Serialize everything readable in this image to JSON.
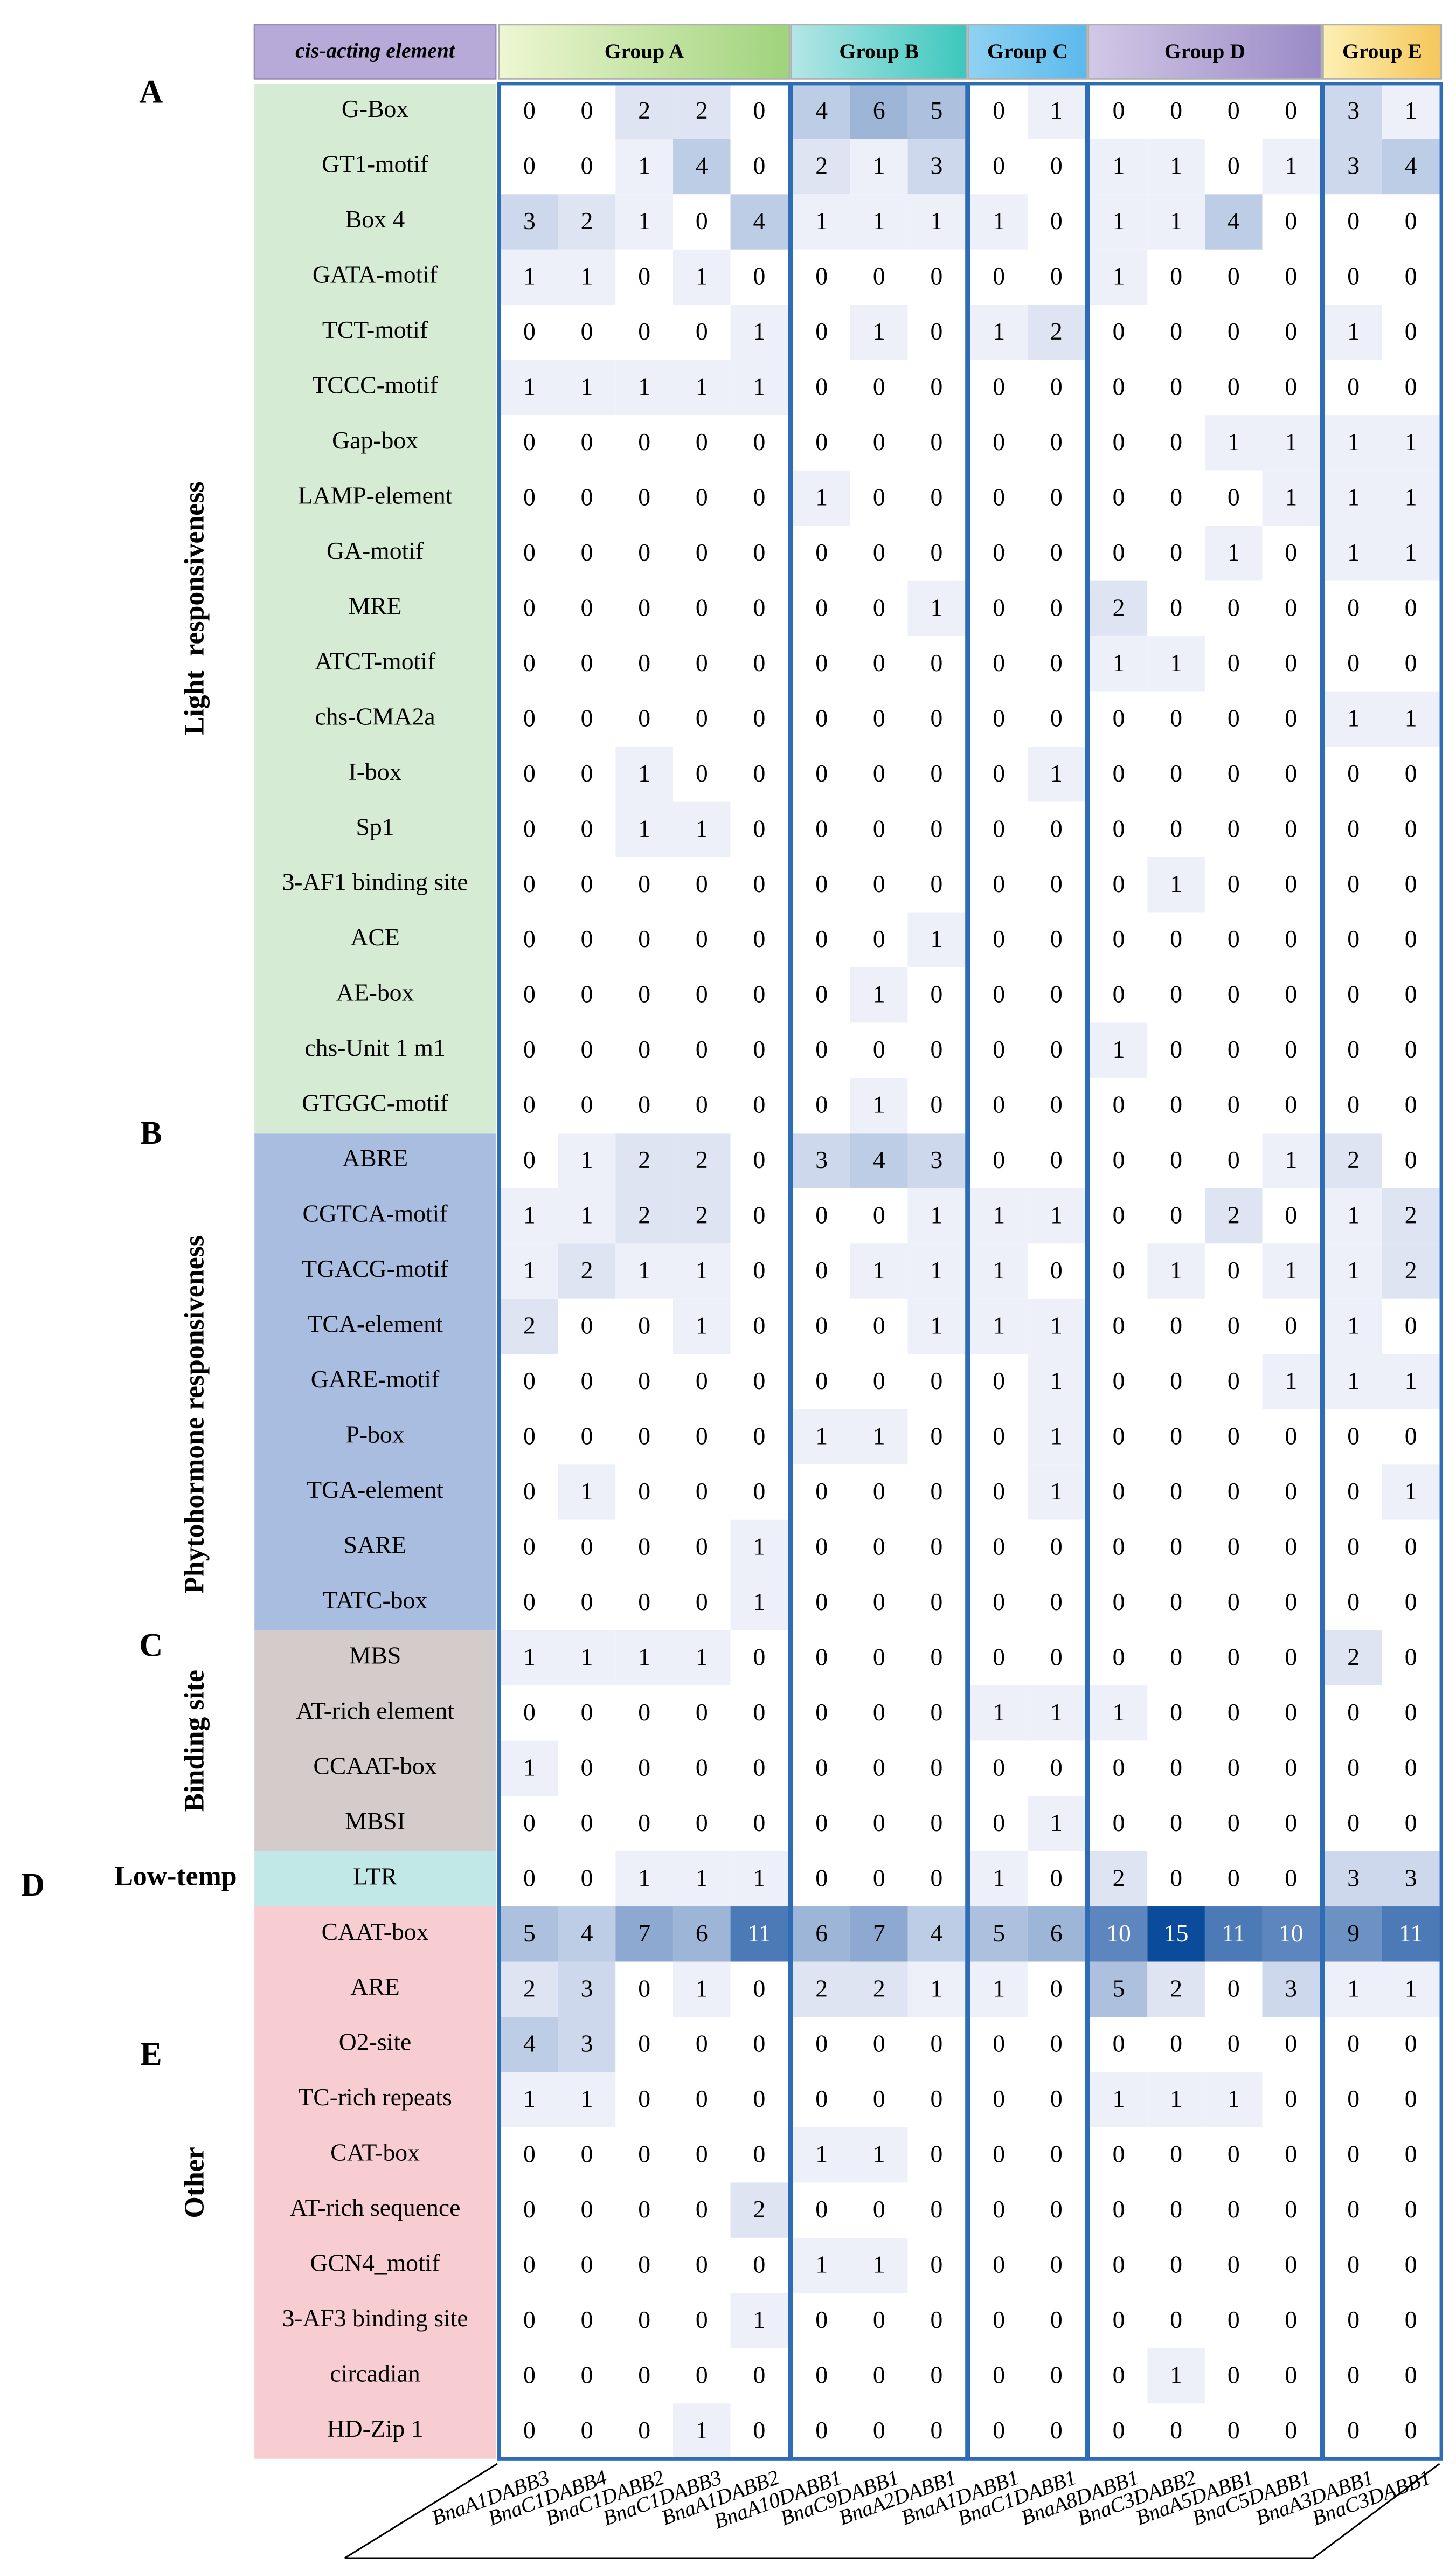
{
  "header": {
    "element_label": "cis-acting element",
    "groups": [
      {
        "name": "Group A",
        "colors": [
          "#eef6d2",
          "#9fd37c"
        ],
        "columns": [
          "BnaA1DABB3",
          "BnaC1DABB4",
          "BnaC1DABB2",
          "BnaC1DABB3",
          "BnaA1DABB2"
        ]
      },
      {
        "name": "Group B",
        "colors": [
          "#b4e6e6",
          "#3cc7bd"
        ],
        "columns": [
          "BnaA10DABB1",
          "BnaC9DABB1",
          "BnaA2DABB1"
        ]
      },
      {
        "name": "Group C",
        "colors": [
          "#8fd2f2",
          "#5cb9ec"
        ],
        "columns": [
          "BnaA1DABB1",
          "BnaC1DABB1"
        ]
      },
      {
        "name": "Group D",
        "colors": [
          "#d2c8e6",
          "#9a8ac6"
        ],
        "columns": [
          "BnaA8DABB1",
          "BnaC3DABB2",
          "BnaA5DABB1",
          "BnaC5DABB1"
        ]
      },
      {
        "name": "Group E",
        "colors": [
          "#fdf0b4",
          "#f5c65a"
        ],
        "columns": [
          "BnaA3DABB1",
          "BnaC3DABB1"
        ]
      }
    ]
  },
  "colormap": [
    "#ffffff",
    "#eef0f9",
    "#0b4b9b"
  ],
  "sections": [
    {
      "letter": "A",
      "name": "Light  responsiveness",
      "color": "#d5ebd3",
      "rows": [
        {
          "element": "G-Box",
          "values": [
            0,
            0,
            2,
            2,
            0,
            4,
            6,
            5,
            0,
            1,
            0,
            0,
            0,
            0,
            3,
            1
          ]
        },
        {
          "element": "GT1-motif",
          "values": [
            0,
            0,
            1,
            4,
            0,
            2,
            1,
            3,
            0,
            0,
            1,
            1,
            0,
            1,
            3,
            4
          ]
        },
        {
          "element": "Box 4",
          "values": [
            3,
            2,
            1,
            0,
            4,
            1,
            1,
            1,
            1,
            0,
            1,
            1,
            4,
            0,
            0,
            0
          ]
        },
        {
          "element": "GATA-motif",
          "values": [
            1,
            1,
            0,
            1,
            0,
            0,
            0,
            0,
            0,
            0,
            1,
            0,
            0,
            0,
            0,
            0
          ]
        },
        {
          "element": "TCT-motif",
          "values": [
            0,
            0,
            0,
            0,
            1,
            0,
            1,
            0,
            1,
            2,
            0,
            0,
            0,
            0,
            1,
            0
          ]
        },
        {
          "element": "TCCC-motif",
          "values": [
            1,
            1,
            1,
            1,
            1,
            0,
            0,
            0,
            0,
            0,
            0,
            0,
            0,
            0,
            0,
            0
          ]
        },
        {
          "element": "Gap-box",
          "values": [
            0,
            0,
            0,
            0,
            0,
            0,
            0,
            0,
            0,
            0,
            0,
            0,
            1,
            1,
            1,
            1
          ]
        },
        {
          "element": "LAMP-element",
          "values": [
            0,
            0,
            0,
            0,
            0,
            1,
            0,
            0,
            0,
            0,
            0,
            0,
            0,
            1,
            1,
            1
          ]
        },
        {
          "element": "GA-motif",
          "values": [
            0,
            0,
            0,
            0,
            0,
            0,
            0,
            0,
            0,
            0,
            0,
            0,
            1,
            0,
            1,
            1
          ]
        },
        {
          "element": "MRE",
          "values": [
            0,
            0,
            0,
            0,
            0,
            0,
            0,
            1,
            0,
            0,
            2,
            0,
            0,
            0,
            0,
            0
          ]
        },
        {
          "element": "ATCT-motif",
          "values": [
            0,
            0,
            0,
            0,
            0,
            0,
            0,
            0,
            0,
            0,
            1,
            1,
            0,
            0,
            0,
            0
          ]
        },
        {
          "element": "chs-CMA2a",
          "values": [
            0,
            0,
            0,
            0,
            0,
            0,
            0,
            0,
            0,
            0,
            0,
            0,
            0,
            0,
            1,
            1
          ]
        },
        {
          "element": "I-box",
          "values": [
            0,
            0,
            1,
            0,
            0,
            0,
            0,
            0,
            0,
            1,
            0,
            0,
            0,
            0,
            0,
            0
          ]
        },
        {
          "element": "Sp1",
          "values": [
            0,
            0,
            1,
            1,
            0,
            0,
            0,
            0,
            0,
            0,
            0,
            0,
            0,
            0,
            0,
            0
          ]
        },
        {
          "element": "3-AF1 binding site",
          "values": [
            0,
            0,
            0,
            0,
            0,
            0,
            0,
            0,
            0,
            0,
            0,
            1,
            0,
            0,
            0,
            0
          ]
        },
        {
          "element": "ACE",
          "values": [
            0,
            0,
            0,
            0,
            0,
            0,
            0,
            1,
            0,
            0,
            0,
            0,
            0,
            0,
            0,
            0
          ]
        },
        {
          "element": "AE-box",
          "values": [
            0,
            0,
            0,
            0,
            0,
            0,
            1,
            0,
            0,
            0,
            0,
            0,
            0,
            0,
            0,
            0
          ]
        },
        {
          "element": "chs-Unit 1 m1",
          "values": [
            0,
            0,
            0,
            0,
            0,
            0,
            0,
            0,
            0,
            0,
            1,
            0,
            0,
            0,
            0,
            0
          ]
        },
        {
          "element": "GTGGC-motif",
          "values": [
            0,
            0,
            0,
            0,
            0,
            0,
            1,
            0,
            0,
            0,
            0,
            0,
            0,
            0,
            0,
            0
          ]
        }
      ]
    },
    {
      "letter": "B",
      "name": "Phytohormone responsiveness",
      "color": "#a9bde1",
      "rows": [
        {
          "element": "ABRE",
          "values": [
            0,
            1,
            2,
            2,
            0,
            3,
            4,
            3,
            0,
            0,
            0,
            0,
            0,
            1,
            2,
            0
          ]
        },
        {
          "element": "CGTCA-motif",
          "values": [
            1,
            1,
            2,
            2,
            0,
            0,
            0,
            1,
            1,
            1,
            0,
            0,
            2,
            0,
            1,
            2
          ]
        },
        {
          "element": "TGACG-motif",
          "values": [
            1,
            2,
            1,
            1,
            0,
            0,
            1,
            1,
            1,
            0,
            0,
            1,
            0,
            1,
            1,
            2
          ]
        },
        {
          "element": "TCA-element",
          "values": [
            2,
            0,
            0,
            1,
            0,
            0,
            0,
            1,
            1,
            1,
            0,
            0,
            0,
            0,
            1,
            0
          ]
        },
        {
          "element": "GARE-motif",
          "values": [
            0,
            0,
            0,
            0,
            0,
            0,
            0,
            0,
            0,
            1,
            0,
            0,
            0,
            1,
            1,
            1
          ]
        },
        {
          "element": "P-box",
          "values": [
            0,
            0,
            0,
            0,
            0,
            1,
            1,
            0,
            0,
            1,
            0,
            0,
            0,
            0,
            0,
            0
          ]
        },
        {
          "element": "TGA-element",
          "values": [
            0,
            1,
            0,
            0,
            0,
            0,
            0,
            0,
            0,
            1,
            0,
            0,
            0,
            0,
            0,
            1
          ]
        },
        {
          "element": "SARE",
          "values": [
            0,
            0,
            0,
            0,
            1,
            0,
            0,
            0,
            0,
            0,
            0,
            0,
            0,
            0,
            0,
            0
          ]
        },
        {
          "element": "TATC-box",
          "values": [
            0,
            0,
            0,
            0,
            1,
            0,
            0,
            0,
            0,
            0,
            0,
            0,
            0,
            0,
            0,
            0
          ]
        }
      ]
    },
    {
      "letter": "C",
      "name": "Binding site",
      "color": "#d4cccb",
      "rows": [
        {
          "element": "MBS",
          "values": [
            1,
            1,
            1,
            1,
            0,
            0,
            0,
            0,
            0,
            0,
            0,
            0,
            0,
            0,
            2,
            0
          ]
        },
        {
          "element": "AT-rich element",
          "values": [
            0,
            0,
            0,
            0,
            0,
            0,
            0,
            0,
            1,
            1,
            1,
            0,
            0,
            0,
            0,
            0
          ]
        },
        {
          "element": "CCAAT-box",
          "values": [
            1,
            0,
            0,
            0,
            0,
            0,
            0,
            0,
            0,
            0,
            0,
            0,
            0,
            0,
            0,
            0
          ]
        },
        {
          "element": "MBSI",
          "values": [
            0,
            0,
            0,
            0,
            0,
            0,
            0,
            0,
            0,
            1,
            0,
            0,
            0,
            0,
            0,
            0
          ]
        }
      ]
    },
    {
      "letter": "D",
      "name": "Low-temp",
      "color": "#c2e7e7",
      "rows": [
        {
          "element": "LTR",
          "values": [
            0,
            0,
            1,
            1,
            1,
            0,
            0,
            0,
            1,
            0,
            2,
            0,
            0,
            0,
            3,
            3
          ]
        }
      ]
    },
    {
      "letter": "E",
      "name": "Other",
      "color": "#f8cdd1",
      "rows": [
        {
          "element": "CAAT-box",
          "values": [
            5,
            4,
            7,
            6,
            11,
            6,
            7,
            4,
            5,
            6,
            10,
            15,
            11,
            10,
            9,
            11
          ]
        },
        {
          "element": "ARE",
          "values": [
            2,
            3,
            0,
            1,
            0,
            2,
            2,
            1,
            1,
            0,
            5,
            2,
            0,
            3,
            1,
            1
          ]
        },
        {
          "element": "O2-site",
          "values": [
            4,
            3,
            0,
            0,
            0,
            0,
            0,
            0,
            0,
            0,
            0,
            0,
            0,
            0,
            0,
            0
          ]
        },
        {
          "element": "TC-rich repeats",
          "values": [
            1,
            1,
            0,
            0,
            0,
            0,
            0,
            0,
            0,
            0,
            1,
            1,
            1,
            0,
            0,
            0
          ]
        },
        {
          "element": "CAT-box",
          "values": [
            0,
            0,
            0,
            0,
            0,
            1,
            1,
            0,
            0,
            0,
            0,
            0,
            0,
            0,
            0,
            0
          ]
        },
        {
          "element": "AT-rich sequence",
          "values": [
            0,
            0,
            0,
            0,
            2,
            0,
            0,
            0,
            0,
            0,
            0,
            0,
            0,
            0,
            0,
            0
          ]
        },
        {
          "element": "GCN4_motif",
          "values": [
            0,
            0,
            0,
            0,
            0,
            1,
            1,
            0,
            0,
            0,
            0,
            0,
            0,
            0,
            0,
            0
          ]
        },
        {
          "element": "3-AF3 binding site",
          "values": [
            0,
            0,
            0,
            0,
            1,
            0,
            0,
            0,
            0,
            0,
            0,
            0,
            0,
            0,
            0,
            0
          ]
        },
        {
          "element": "circadian",
          "values": [
            0,
            0,
            0,
            0,
            0,
            0,
            0,
            0,
            0,
            0,
            0,
            1,
            0,
            0,
            0,
            0
          ]
        },
        {
          "element": "HD-Zip 1",
          "values": [
            0,
            0,
            0,
            1,
            0,
            0,
            0,
            0,
            0,
            0,
            0,
            0,
            0,
            0,
            0,
            0
          ]
        }
      ]
    }
  ]
}
